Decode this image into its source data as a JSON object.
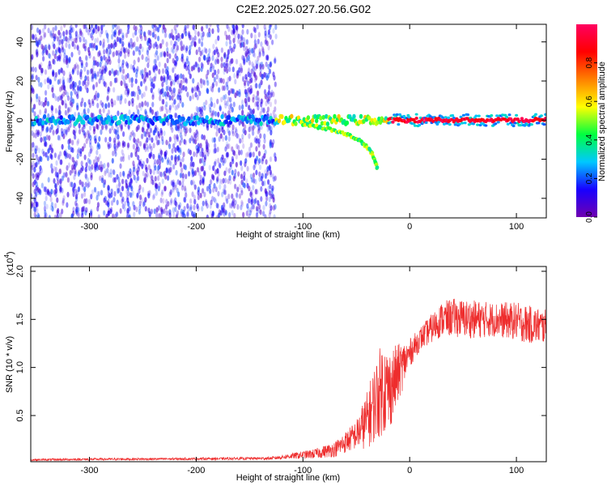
{
  "title": "C2E2.2025.027.20.56.G02",
  "colors": {
    "snr_line": "#ee2d2d",
    "axis": "#000000",
    "colorbar_stops": [
      "#7000b0",
      "#1800ff",
      "#00c8ff",
      "#00ff40",
      "#ffff00",
      "#ff8000",
      "#ff0000",
      "#ff0060"
    ]
  },
  "chart_data": [
    {
      "id": "spectrogram",
      "type": "heatmap",
      "title": "",
      "xlabel": "Height of straight line (km)",
      "ylabel": "Frequency (Hz)",
      "xlim": [
        -355,
        128
      ],
      "ylim": [
        -50,
        49
      ],
      "xticks": [
        -300,
        -200,
        -100,
        0,
        100
      ],
      "xtick_labels": [
        "-300",
        "-200",
        "-100",
        "0",
        "100"
      ],
      "yticks": [
        -40,
        -20,
        0,
        20,
        40
      ],
      "ytick_labels": [
        "-40",
        "-20",
        "0",
        "20",
        "40"
      ],
      "colorbar": {
        "label": "Normalized spectral amplitude",
        "range": [
          0,
          1
        ],
        "ticks": [
          0.0,
          0.2,
          0.4,
          0.6,
          0.8
        ],
        "tick_labels": [
          "0.0",
          "0.2",
          "0.4",
          "0.6",
          "0.8"
        ]
      },
      "features": [
        {
          "name": "noise region",
          "x_range": [
            -355,
            -125
          ],
          "freq_range": [
            -50,
            49
          ],
          "amplitude": 0.1
        },
        {
          "name": "carrier line",
          "x_range": [
            -355,
            128
          ],
          "freq": 0,
          "amplitude_range": [
            0.15,
            1.0
          ]
        },
        {
          "name": "lower branch",
          "x": [
            -100,
            -80,
            -60,
            -45,
            -35,
            -30
          ],
          "freq": [
            -2,
            -4,
            -7,
            -11,
            -17,
            -25
          ],
          "amplitude": 0.35
        }
      ]
    },
    {
      "id": "snr",
      "type": "line",
      "title": "",
      "xlabel": "Height of straight line (km)",
      "ylabel": "SNR (10 * v/v)",
      "y_multiplier_label": "(x10",
      "y_multiplier_exp": "4",
      "y_multiplier_close": ")",
      "xlim": [
        -355,
        128
      ],
      "ylim": [
        0.02,
        2.05
      ],
      "xticks": [
        -300,
        -200,
        -100,
        0,
        100
      ],
      "xtick_labels": [
        "-300",
        "-200",
        "-100",
        "0",
        "100"
      ],
      "yticks": [
        0.5,
        1.0,
        1.5,
        2.0
      ],
      "ytick_labels": [
        "0.5",
        "1.0",
        "1.5",
        "2.0"
      ],
      "series": [
        {
          "name": "SNR",
          "envelope_x": [
            -355,
            -300,
            -200,
            -130,
            -110,
            -90,
            -70,
            -50,
            -40,
            -30,
            -25,
            -20,
            -10,
            0,
            10,
            20,
            30,
            40,
            60,
            80,
            100,
            110,
            128
          ],
          "envelope_mean": [
            0.04,
            0.045,
            0.05,
            0.055,
            0.08,
            0.1,
            0.15,
            0.3,
            0.45,
            0.7,
            0.8,
            0.75,
            0.95,
            1.15,
            1.3,
            1.4,
            1.5,
            1.52,
            1.5,
            1.5,
            1.48,
            1.45,
            1.42
          ],
          "envelope_spread": [
            0.01,
            0.012,
            0.012,
            0.015,
            0.03,
            0.05,
            0.08,
            0.15,
            0.3,
            0.45,
            0.5,
            0.45,
            0.3,
            0.15,
            0.12,
            0.15,
            0.18,
            0.2,
            0.2,
            0.18,
            0.2,
            0.2,
            0.18
          ]
        }
      ]
    }
  ]
}
